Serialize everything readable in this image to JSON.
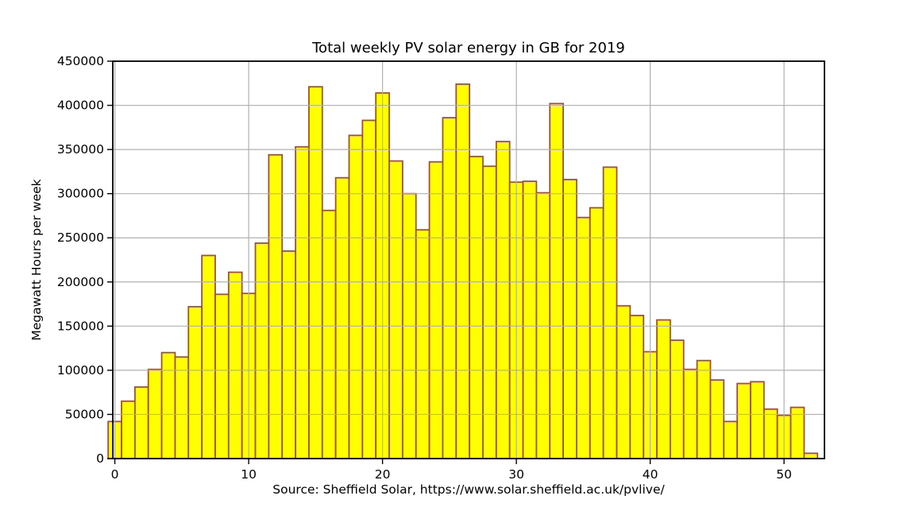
{
  "chart_data": {
    "type": "bar",
    "title": "Total weekly PV solar energy in GB for 2019",
    "xlabel": "Source: Sheffield Solar, https://www.solar.sheffield.ac.uk/pvlive/",
    "ylabel": "Megawatt Hours per week",
    "x": [
      0,
      1,
      2,
      3,
      4,
      5,
      6,
      7,
      8,
      9,
      10,
      11,
      12,
      13,
      14,
      15,
      16,
      17,
      18,
      19,
      20,
      21,
      22,
      23,
      24,
      25,
      26,
      27,
      28,
      29,
      30,
      31,
      32,
      33,
      34,
      35,
      36,
      37,
      38,
      39,
      40,
      41,
      42,
      43,
      44,
      45,
      46,
      47,
      48,
      49,
      50,
      51,
      52
    ],
    "values": [
      42000,
      65000,
      81000,
      101000,
      120000,
      115000,
      172000,
      230000,
      186000,
      211000,
      187000,
      244000,
      344000,
      235000,
      353000,
      421000,
      281000,
      318000,
      366000,
      383000,
      414000,
      337000,
      300000,
      259000,
      336000,
      386000,
      424000,
      342000,
      331000,
      359000,
      313000,
      314000,
      301000,
      402000,
      316000,
      273000,
      284000,
      330000,
      173000,
      162000,
      121000,
      157000,
      134000,
      101000,
      111000,
      89000,
      42000,
      85000,
      87000,
      56000,
      49000,
      58000,
      6000
    ],
    "bar_width": 1.0,
    "xlim": [
      -0.154,
      53.02
    ],
    "ylim": [
      0,
      450000
    ],
    "xticks": [
      0,
      10,
      20,
      30,
      40,
      50
    ],
    "yticks": [
      0,
      50000,
      100000,
      150000,
      200000,
      250000,
      300000,
      350000,
      400000,
      450000
    ],
    "grid": true,
    "legend": "none",
    "colors": {
      "bar_fill": "#ffff00",
      "bar_edge": "#a0522d",
      "grid": "#b0b0b0",
      "spine": "#000000",
      "text": "#000000",
      "background": "#ffffff"
    }
  }
}
